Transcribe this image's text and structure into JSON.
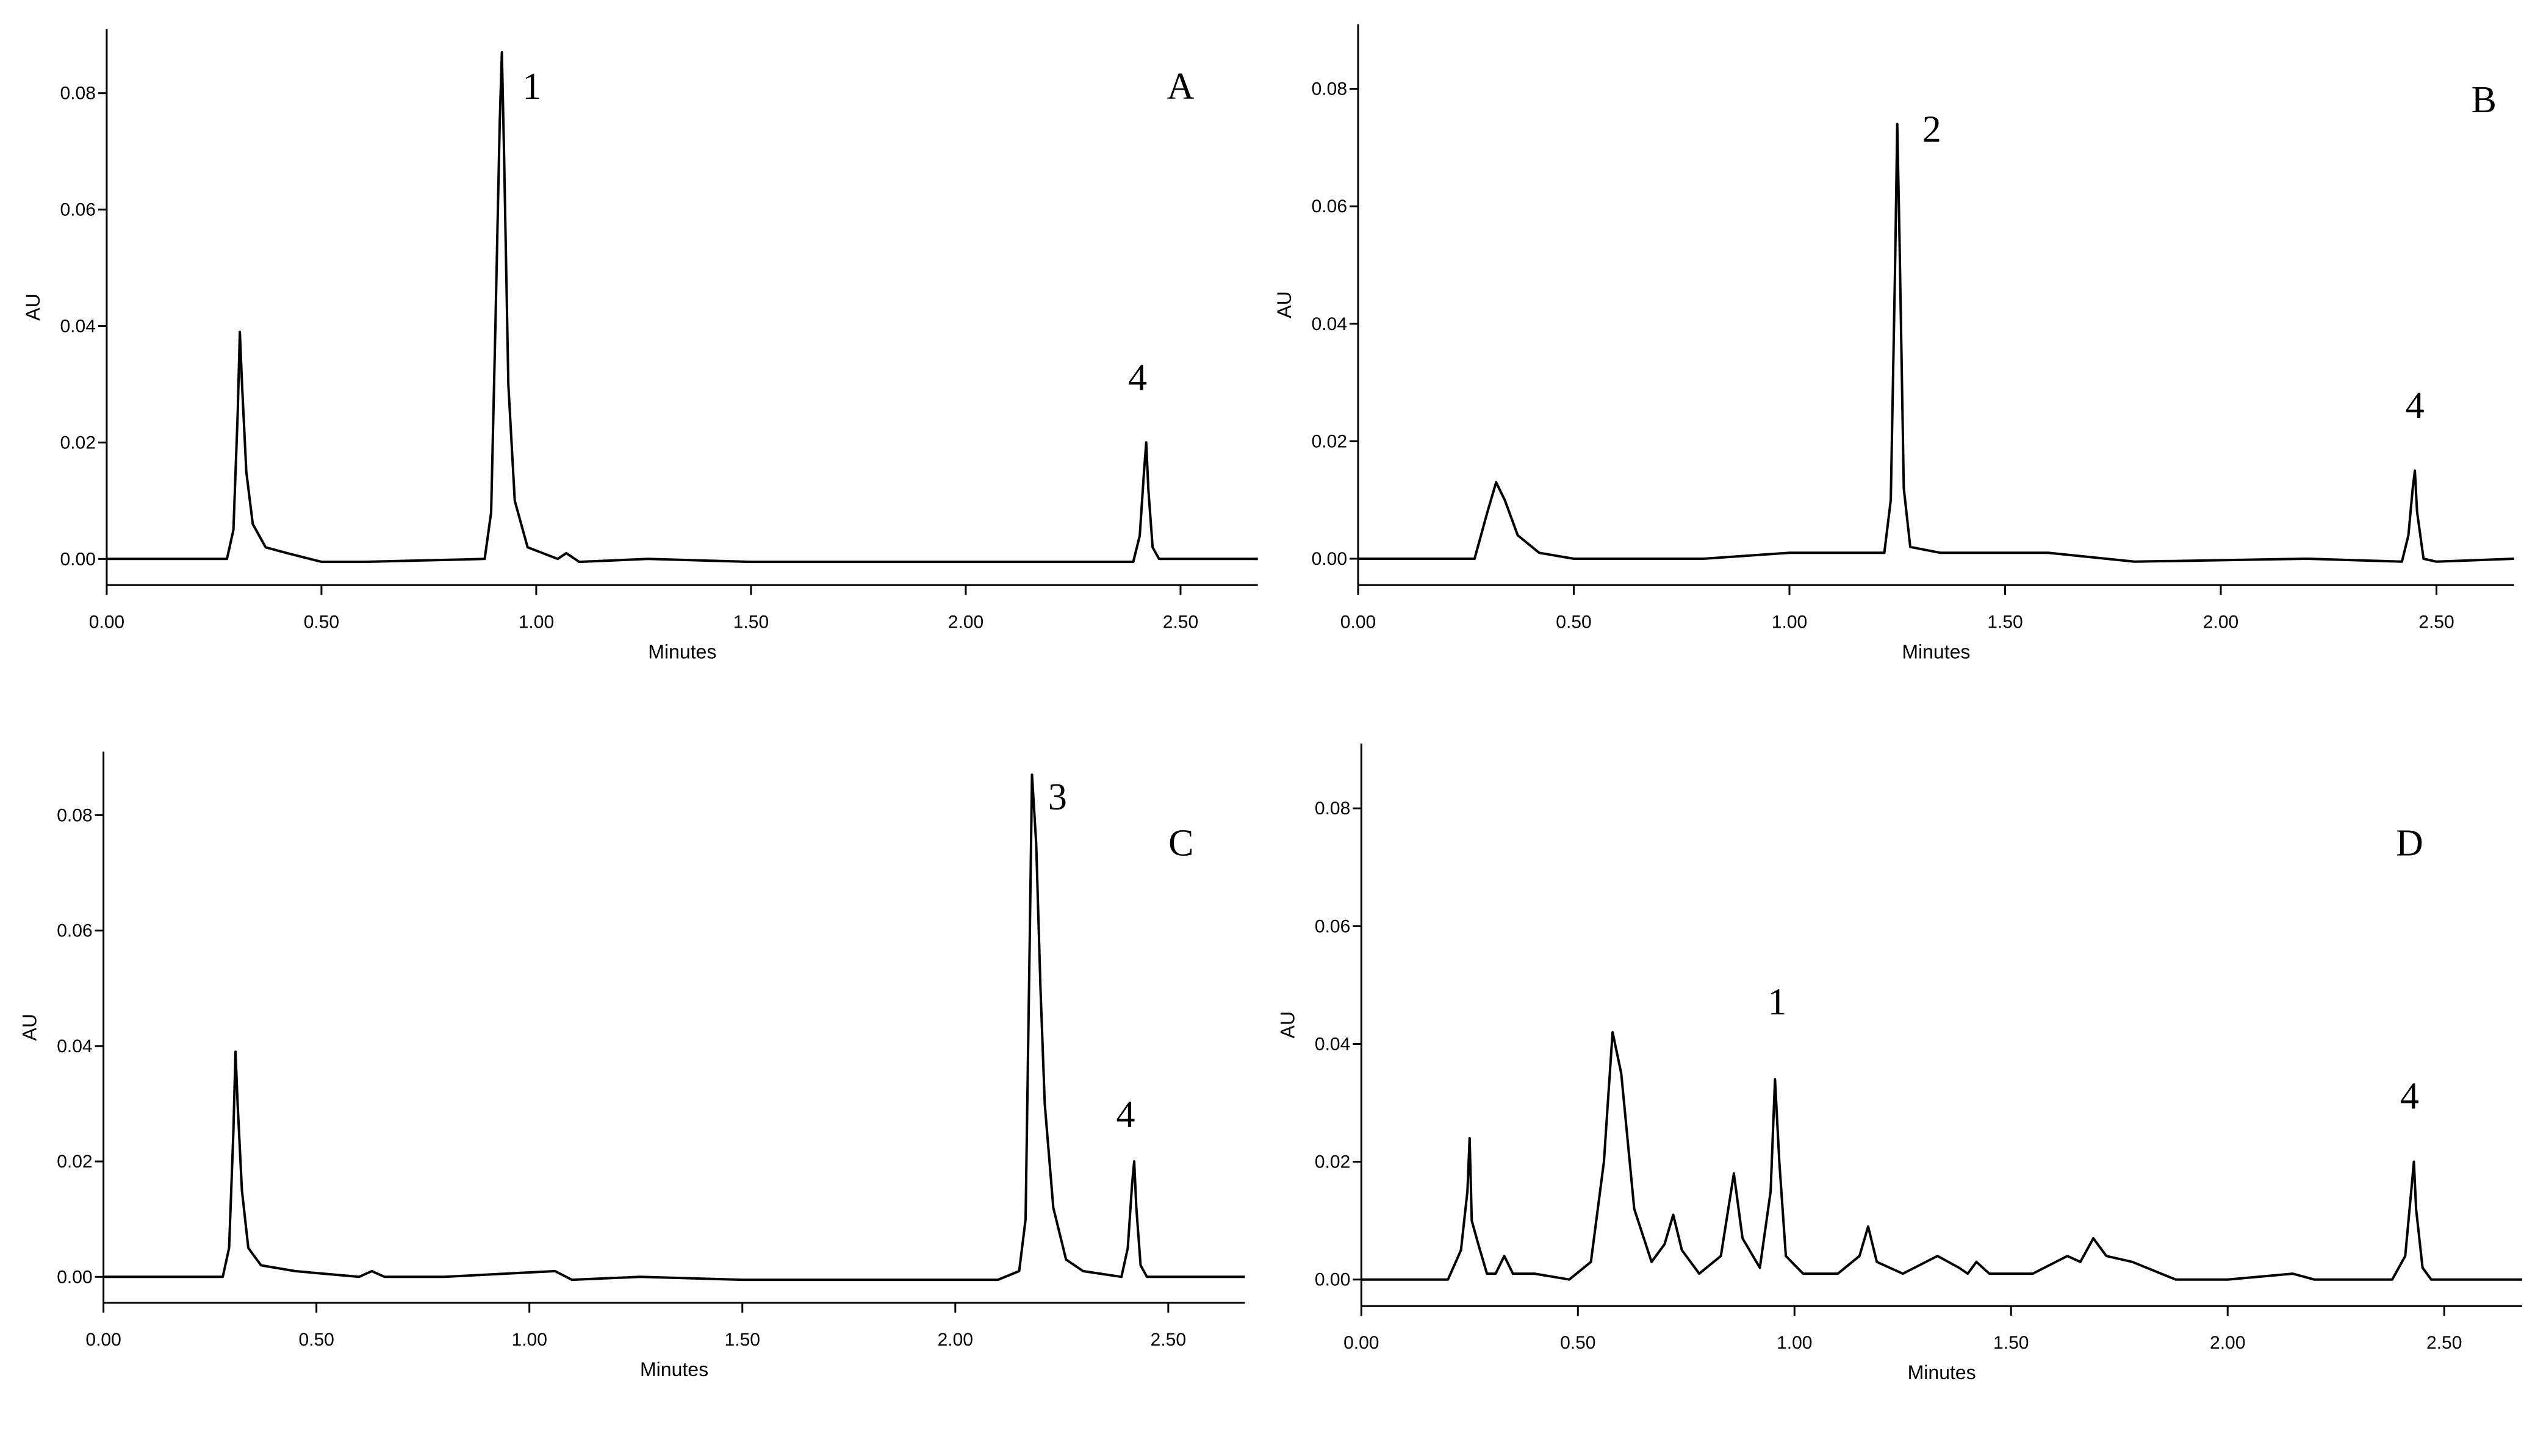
{
  "chart_data": [
    {
      "type": "line",
      "x_label": "Minutes",
      "y_label": "AU",
      "color": "#000000",
      "xlim": [
        0,
        2.68
      ],
      "ylim": [
        -0.0045,
        0.091
      ],
      "xticks": [
        {
          "value": 0,
          "label": "0.00"
        },
        {
          "value": 0.5,
          "label": "0.50"
        },
        {
          "value": 1,
          "label": "1.00"
        },
        {
          "value": 1.5,
          "label": "1.50"
        },
        {
          "value": 2,
          "label": "2.00"
        },
        {
          "value": 2.5,
          "label": "2.50"
        }
      ],
      "yticks": [
        {
          "value": 0,
          "label": "0.00"
        },
        0.02,
        0.04,
        0.06,
        0.08
      ],
      "annotations": [
        {
          "text": "1",
          "x": 0.99,
          "y": 0.079
        },
        {
          "text": "A",
          "x": 2.5,
          "y": 0.079
        },
        {
          "text": "4",
          "x": 2.4,
          "y": 0.029
        }
      ],
      "x": [
        0,
        0.28,
        0.295,
        0.305,
        0.31,
        0.315,
        0.325,
        0.34,
        0.37,
        0.42,
        0.5,
        0.6,
        0.88,
        0.895,
        0.905,
        0.915,
        0.92,
        0.925,
        0.935,
        0.95,
        0.98,
        1.05,
        1.07,
        1.1,
        1.26,
        1.5,
        2.0,
        2.39,
        2.405,
        2.415,
        2.42,
        2.425,
        2.435,
        2.45,
        2.68
      ],
      "values": [
        0,
        0,
        0.005,
        0.025,
        0.039,
        0.03,
        0.015,
        0.006,
        0.002,
        0.001,
        -0.0005,
        -0.0005,
        0,
        0.008,
        0.04,
        0.075,
        0.087,
        0.07,
        0.03,
        0.01,
        0.002,
        0,
        0.001,
        -0.0005,
        0,
        -0.0005,
        -0.0005,
        -0.0005,
        0.004,
        0.015,
        0.02,
        0.012,
        0.002,
        0,
        0
      ]
    },
    {
      "type": "line",
      "x_label": "Minutes",
      "y_label": "AU",
      "color": "#000000",
      "xlim": [
        0,
        2.68
      ],
      "ylim": [
        -0.0045,
        0.091
      ],
      "xticks": [
        {
          "value": 0,
          "label": "0.00"
        },
        {
          "value": 0.5,
          "label": "0.50"
        },
        {
          "value": 1,
          "label": "1.00"
        },
        {
          "value": 1.5,
          "label": "1.50"
        },
        {
          "value": 2,
          "label": "2.00"
        },
        {
          "value": 2.5,
          "label": "2.50"
        }
      ],
      "yticks": [
        {
          "value": 0,
          "label": "0.00"
        },
        0.02,
        0.04,
        0.06,
        0.08
      ],
      "annotations": [
        {
          "text": "2",
          "x": 1.33,
          "y": 0.071
        },
        {
          "text": "B",
          "x": 2.61,
          "y": 0.076
        },
        {
          "text": "4",
          "x": 2.45,
          "y": 0.024
        }
      ],
      "x": [
        0,
        0.27,
        0.3,
        0.32,
        0.34,
        0.37,
        0.42,
        0.5,
        0.8,
        1.0,
        1.22,
        1.235,
        1.245,
        1.25,
        1.255,
        1.265,
        1.28,
        1.35,
        1.6,
        1.8,
        2.2,
        2.42,
        2.435,
        2.445,
        2.45,
        2.455,
        2.47,
        2.5,
        2.68
      ],
      "values": [
        0,
        0,
        0.008,
        0.013,
        0.01,
        0.004,
        0.001,
        0,
        0,
        0.001,
        0.001,
        0.01,
        0.05,
        0.074,
        0.055,
        0.012,
        0.002,
        0.001,
        0.001,
        -0.0005,
        0,
        -0.0005,
        0.004,
        0.012,
        0.015,
        0.008,
        0,
        -0.0005,
        0
      ]
    },
    {
      "type": "line",
      "x_label": "Minutes",
      "y_label": "AU",
      "color": "#000000",
      "xlim": [
        0,
        2.68
      ],
      "ylim": [
        -0.0045,
        0.091
      ],
      "xticks": [
        {
          "value": 0,
          "label": "0.00"
        },
        {
          "value": 0.5,
          "label": "0.50"
        },
        {
          "value": 1,
          "label": "1.00"
        },
        {
          "value": 1.5,
          "label": "1.50"
        },
        {
          "value": 2,
          "label": "2.00"
        },
        {
          "value": 2.5,
          "label": "2.50"
        }
      ],
      "yticks": [
        {
          "value": 0,
          "label": "0.00"
        },
        0.02,
        0.04,
        0.06,
        0.08
      ],
      "annotations": [
        {
          "text": "3",
          "x": 2.24,
          "y": 0.081
        },
        {
          "text": "C",
          "x": 2.53,
          "y": 0.073
        },
        {
          "text": "4",
          "x": 2.4,
          "y": 0.026
        }
      ],
      "x": [
        0,
        0.28,
        0.295,
        0.305,
        0.31,
        0.315,
        0.325,
        0.34,
        0.37,
        0.45,
        0.6,
        0.63,
        0.66,
        0.8,
        1.06,
        1.1,
        1.26,
        1.5,
        2.1,
        2.15,
        2.165,
        2.175,
        2.18,
        2.19,
        2.2,
        2.21,
        2.23,
        2.26,
        2.3,
        2.39,
        2.405,
        2.415,
        2.42,
        2.425,
        2.435,
        2.45,
        2.68
      ],
      "values": [
        0,
        0,
        0.005,
        0.025,
        0.039,
        0.03,
        0.015,
        0.005,
        0.002,
        0.001,
        0,
        0.001,
        0,
        0,
        0.001,
        -0.0005,
        0,
        -0.0005,
        -0.0005,
        0.001,
        0.01,
        0.06,
        0.087,
        0.075,
        0.05,
        0.03,
        0.012,
        0.003,
        0.001,
        0,
        0.005,
        0.016,
        0.02,
        0.012,
        0.002,
        0,
        0
      ]
    },
    {
      "type": "line",
      "x_label": "Minutes",
      "y_label": "AU",
      "color": "#000000",
      "xlim": [
        0,
        2.68
      ],
      "ylim": [
        -0.0045,
        0.091
      ],
      "xticks": [
        {
          "value": 0,
          "label": "0.00"
        },
        {
          "value": 0.5,
          "label": "0.50"
        },
        {
          "value": 1,
          "label": "1.00"
        },
        {
          "value": 1.5,
          "label": "1.50"
        },
        {
          "value": 2,
          "label": "2.00"
        },
        {
          "value": 2.5,
          "label": "2.50"
        }
      ],
      "yticks": [
        {
          "value": 0,
          "label": "0.00"
        },
        0.02,
        0.04,
        0.06,
        0.08
      ],
      "annotations": [
        {
          "text": "1",
          "x": 0.96,
          "y": 0.045
        },
        {
          "text": "D",
          "x": 2.42,
          "y": 0.072
        },
        {
          "text": "4",
          "x": 2.42,
          "y": 0.029
        }
      ],
      "x": [
        0,
        0.2,
        0.23,
        0.245,
        0.25,
        0.255,
        0.27,
        0.29,
        0.31,
        0.33,
        0.35,
        0.4,
        0.48,
        0.53,
        0.56,
        0.58,
        0.6,
        0.63,
        0.67,
        0.7,
        0.72,
        0.74,
        0.78,
        0.83,
        0.86,
        0.88,
        0.92,
        0.945,
        0.955,
        0.965,
        0.98,
        1.02,
        1.1,
        1.15,
        1.17,
        1.19,
        1.25,
        1.33,
        1.38,
        1.4,
        1.42,
        1.45,
        1.55,
        1.63,
        1.66,
        1.69,
        1.72,
        1.78,
        1.88,
        2.0,
        2.15,
        2.2,
        2.38,
        2.41,
        2.425,
        2.43,
        2.435,
        2.45,
        2.47,
        2.68
      ],
      "values": [
        0,
        0,
        0.005,
        0.015,
        0.024,
        0.01,
        0.006,
        0.001,
        0.001,
        0.004,
        0.001,
        0.001,
        0,
        0.003,
        0.02,
        0.042,
        0.035,
        0.012,
        0.003,
        0.006,
        0.011,
        0.005,
        0.001,
        0.004,
        0.018,
        0.007,
        0.002,
        0.015,
        0.034,
        0.02,
        0.004,
        0.001,
        0.001,
        0.004,
        0.009,
        0.003,
        0.001,
        0.004,
        0.002,
        0.001,
        0.003,
        0.001,
        0.001,
        0.004,
        0.003,
        0.007,
        0.004,
        0.003,
        0,
        0,
        0.001,
        0,
        0,
        0.004,
        0.016,
        0.02,
        0.012,
        0.002,
        0,
        0
      ]
    }
  ]
}
